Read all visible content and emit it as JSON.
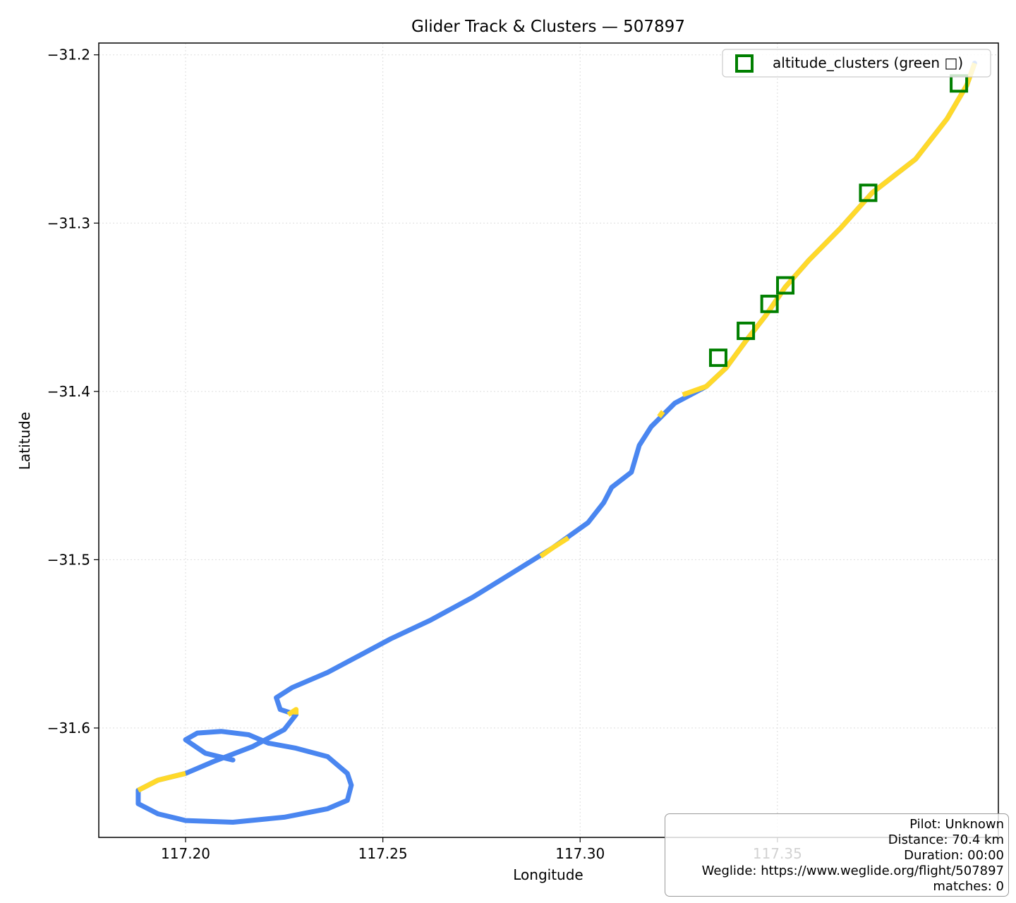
{
  "chart_data": {
    "type": "line",
    "title": "Glider Track & Clusters — 507897",
    "xlabel": "Longitude",
    "ylabel": "Latitude",
    "xlim": [
      117.178,
      117.406
    ],
    "ylim": [
      -31.665,
      -31.193
    ],
    "xticks": [
      117.2,
      117.25,
      117.3,
      117.35
    ],
    "xtick_labels": [
      "117.20",
      "117.25",
      "117.30",
      "117.35"
    ],
    "yticks": [
      -31.2,
      -31.3,
      -31.4,
      -31.5,
      -31.6
    ],
    "ytick_labels": [
      "−31.2",
      "−31.3",
      "−31.4",
      "−31.5",
      "−31.6"
    ],
    "grid": true,
    "legend_position": "top-right",
    "track_colors": {
      "blue": "#4a86f0",
      "yellow": "#ffd92a"
    },
    "track": [
      [
        117.212,
        -31.619
      ],
      [
        117.205,
        -31.615
      ],
      [
        117.2,
        -31.607
      ],
      [
        117.203,
        -31.603
      ],
      [
        117.209,
        -31.602
      ],
      [
        117.216,
        -31.604
      ],
      [
        117.221,
        -31.609
      ],
      [
        117.228,
        -31.612
      ],
      [
        117.236,
        -31.617
      ],
      [
        117.241,
        -31.627
      ],
      [
        117.242,
        -31.634
      ],
      [
        117.241,
        -31.643
      ],
      [
        117.236,
        -31.648
      ],
      [
        117.225,
        -31.653
      ],
      [
        117.212,
        -31.656
      ],
      [
        117.2,
        -31.655
      ],
      [
        117.193,
        -31.651
      ],
      [
        117.188,
        -31.645
      ],
      [
        117.188,
        -31.637
      ],
      [
        117.193,
        -31.631
      ],
      [
        117.2,
        -31.627
      ],
      [
        117.207,
        -31.62
      ],
      [
        117.217,
        -31.611
      ],
      [
        117.225,
        -31.601
      ],
      [
        117.228,
        -31.592
      ],
      [
        117.224,
        -31.589
      ],
      [
        117.223,
        -31.582
      ],
      [
        117.227,
        -31.576
      ],
      [
        117.236,
        -31.567
      ],
      [
        117.244,
        -31.557
      ],
      [
        117.252,
        -31.547
      ],
      [
        117.262,
        -31.536
      ],
      [
        117.273,
        -31.522
      ],
      [
        117.282,
        -31.509
      ],
      [
        117.293,
        -31.493
      ],
      [
        117.302,
        -31.478
      ],
      [
        117.306,
        -31.466
      ],
      [
        117.308,
        -31.457
      ],
      [
        117.313,
        -31.448
      ],
      [
        117.315,
        -31.432
      ],
      [
        117.318,
        -31.421
      ],
      [
        117.324,
        -31.407
      ],
      [
        117.332,
        -31.397
      ],
      [
        117.337,
        -31.386
      ],
      [
        117.342,
        -31.37
      ],
      [
        117.347,
        -31.355
      ],
      [
        117.352,
        -31.338
      ],
      [
        117.358,
        -31.322
      ],
      [
        117.366,
        -31.303
      ],
      [
        117.374,
        -31.282
      ],
      [
        117.385,
        -31.262
      ],
      [
        117.393,
        -31.238
      ],
      [
        117.398,
        -31.218
      ],
      [
        117.4,
        -31.205
      ]
    ],
    "yellow_segments": [
      [
        117.188,
        -31.637,
        117.2,
        -31.627
      ],
      [
        117.226,
        -31.592,
        117.228,
        -31.589
      ],
      [
        117.29,
        -31.498,
        117.297,
        -31.487
      ],
      [
        117.32,
        -31.415,
        117.321,
        -31.412
      ],
      [
        117.326,
        -31.402,
        117.4,
        -31.205
      ]
    ],
    "series": [
      {
        "name": "altitude_clusters (green □)",
        "marker": "square",
        "color": "#007f00",
        "x": [
          117.335,
          117.342,
          117.348,
          117.352,
          117.373,
          117.396
        ],
        "y": [
          -31.38,
          -31.364,
          -31.348,
          -31.337,
          -31.282,
          -31.217
        ]
      }
    ]
  },
  "info_box": {
    "lines": [
      "Pilot: Unknown",
      "Distance: 70.4 km",
      "Duration: 00:00",
      "Weglide: https://www.weglide.org/flight/507897",
      "matches: 0"
    ]
  }
}
